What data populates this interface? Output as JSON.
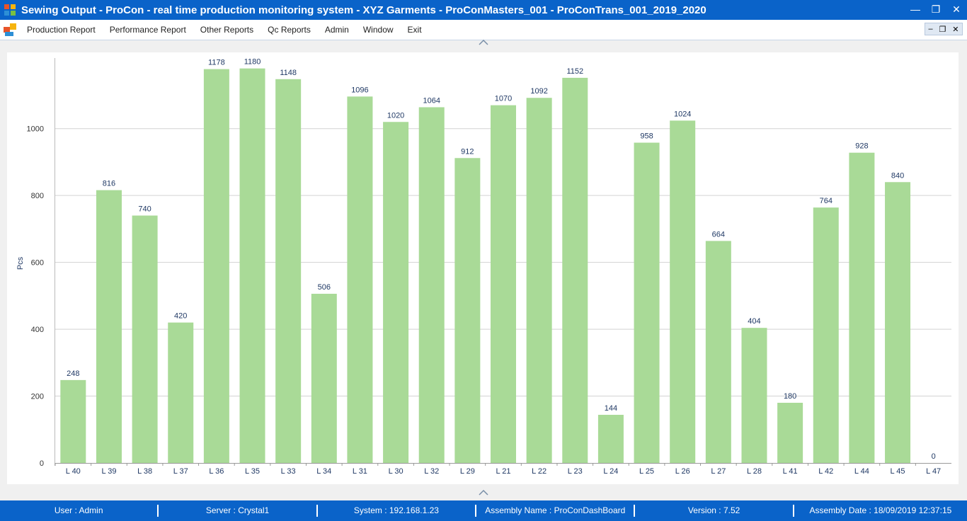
{
  "window": {
    "title": "Sewing Output  - ProCon - real time production monitoring system - XYZ Garments - ProConMasters_001 - ProConTrans_001_2019_2020",
    "minimize_glyph": "—",
    "restore_glyph": "❐",
    "close_glyph": "✕"
  },
  "menu": {
    "items": [
      "Production Report",
      "Performance Report",
      "Other Reports",
      "Qc Reports",
      "Admin",
      "Window",
      "Exit"
    ],
    "mdi_minimize": "–",
    "mdi_restore": "❐",
    "mdi_close": "✕"
  },
  "chart_data": {
    "type": "bar",
    "title": "",
    "xlabel": "",
    "ylabel": "Pcs",
    "ylim": [
      0,
      1200
    ],
    "yticks": [
      0,
      200,
      400,
      600,
      800,
      1000
    ],
    "grid": true,
    "bar_color": "#a9da97",
    "label_color": "#1f3864",
    "categories": [
      "L 40",
      "L 39",
      "L 38",
      "L 37",
      "L 36",
      "L 35",
      "L 33",
      "L 34",
      "L 31",
      "L 30",
      "L 32",
      "L 29",
      "L 21",
      "L 22",
      "L 23",
      "L 24",
      "L 25",
      "L 26",
      "L 27",
      "L 28",
      "L 41",
      "L 42",
      "L 44",
      "L 45",
      "L 47"
    ],
    "values": [
      248,
      816,
      740,
      420,
      1178,
      1180,
      1148,
      506,
      1096,
      1020,
      1064,
      912,
      1070,
      1092,
      1152,
      144,
      958,
      1024,
      664,
      404,
      180,
      764,
      928,
      840,
      0
    ]
  },
  "status": {
    "user": "User : Admin",
    "server": "Server : Crystal1",
    "system": "System : 192.168.1.23",
    "assembly": "Assembly Name : ProConDashBoard",
    "version": "Version : 7.52",
    "assembly_date": "Assembly Date : 18/09/2019 12:37:15"
  },
  "colors": {
    "titlebar": "#0a63c9",
    "statusbar": "#0a63c9",
    "bar": "#a9da97"
  }
}
